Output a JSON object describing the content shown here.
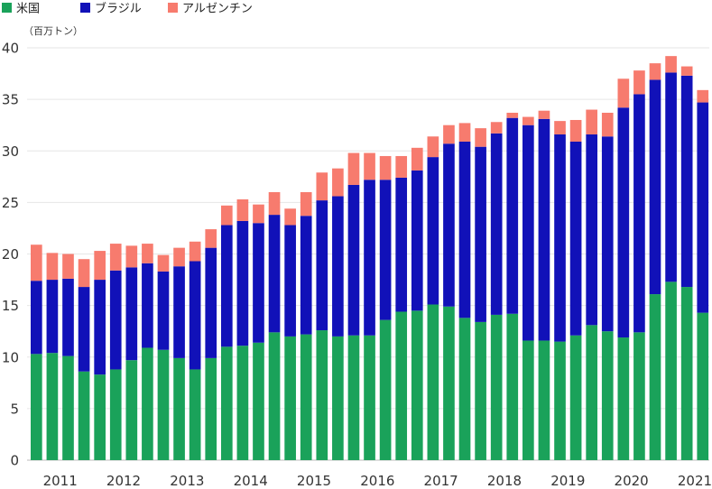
{
  "chart_data": {
    "type": "bar",
    "stacked": true,
    "ylabel": "（百万トン）",
    "ylim": [
      0,
      40
    ],
    "yticks": [
      0,
      5,
      10,
      15,
      20,
      25,
      30,
      35,
      40
    ],
    "year_labels": [
      "2011",
      "2012",
      "2013",
      "2014",
      "2015",
      "2016",
      "2017",
      "2018",
      "2019",
      "2020",
      "2021"
    ],
    "legend_position": "top-left",
    "grid": true,
    "series": [
      {
        "name": "米国",
        "color": "#1aa25a",
        "values": [
          10.3,
          10.4,
          10.1,
          8.6,
          8.3,
          8.8,
          9.7,
          10.9,
          10.7,
          9.9,
          8.8,
          9.9,
          11.0,
          11.1,
          11.4,
          12.4,
          12.0,
          12.2,
          12.6,
          12.0,
          12.1,
          12.1,
          13.6,
          14.4,
          14.5,
          15.1,
          14.9,
          13.8,
          13.4,
          14.1,
          14.2,
          11.6,
          11.6,
          11.5,
          12.1,
          13.1,
          12.5,
          11.9,
          12.4,
          16.1,
          17.3,
          16.8,
          14.3
        ]
      },
      {
        "name": "ブラジル",
        "color": "#1111b8",
        "values": [
          7.1,
          7.1,
          7.5,
          8.2,
          9.2,
          9.6,
          9.0,
          8.2,
          7.6,
          8.9,
          10.5,
          10.7,
          11.8,
          12.1,
          11.6,
          11.4,
          10.8,
          11.5,
          12.6,
          13.6,
          14.6,
          15.1,
          13.6,
          13.0,
          13.6,
          14.3,
          15.8,
          17.1,
          17.0,
          17.6,
          19.0,
          20.9,
          21.5,
          20.1,
          18.8,
          18.5,
          18.9,
          22.3,
          23.1,
          20.8,
          20.3,
          20.5,
          20.4
        ]
      },
      {
        "name": "アルゼンチン",
        "color": "#f77b6e",
        "values": [
          3.5,
          2.6,
          2.4,
          2.7,
          2.8,
          2.6,
          2.1,
          1.9,
          1.6,
          1.8,
          1.9,
          1.8,
          1.9,
          2.1,
          1.8,
          2.2,
          1.6,
          2.3,
          2.7,
          2.7,
          3.1,
          2.6,
          2.3,
          2.1,
          2.2,
          2.0,
          1.8,
          1.8,
          1.8,
          1.1,
          0.5,
          0.8,
          0.8,
          1.3,
          2.1,
          2.4,
          2.3,
          2.8,
          2.3,
          1.6,
          1.6,
          0.9,
          1.2
        ]
      }
    ]
  }
}
